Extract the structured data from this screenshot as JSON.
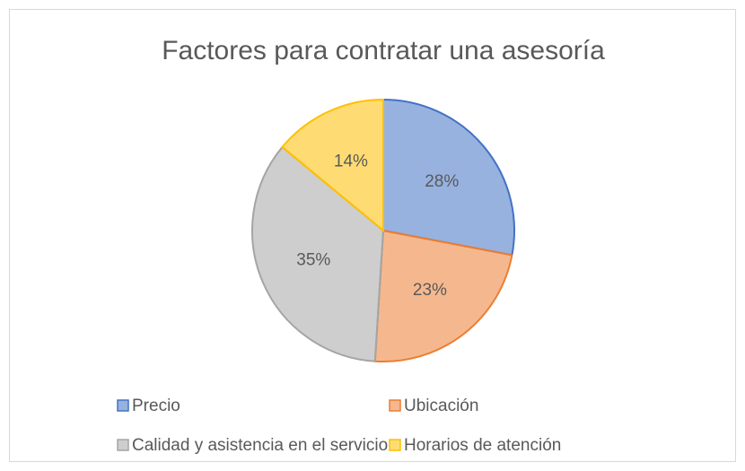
{
  "chart_data": {
    "type": "pie",
    "title": "Factores para contratar una asesoría",
    "categories": [
      "Precio",
      "Ubicación",
      "Calidad y asistencia en el servicio",
      "Horarios de atención"
    ],
    "values": [
      28,
      23,
      35,
      14
    ],
    "value_labels": [
      "28%",
      "23%",
      "35%",
      "14%"
    ],
    "colors": [
      "#4472c4",
      "#ed7d31",
      "#a5a5a5",
      "#ffc000"
    ],
    "legend": "bottom"
  }
}
